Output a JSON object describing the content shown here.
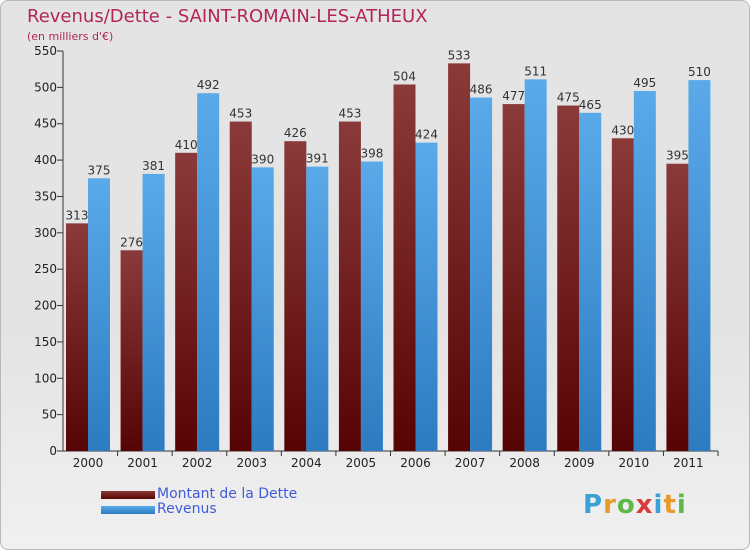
{
  "title": "Revenus/Dette - SAINT-ROMAIN-LES-ATHEUX",
  "subtitle": "(en milliers d'€)",
  "colors": {
    "dette_top": "#8b3a3a",
    "dette_bottom": "#560303",
    "revenus_top": "#5aaaea",
    "revenus_bottom": "#2d7bc0",
    "title": "#b2245a",
    "legend_text": "#3f5bd9"
  },
  "chart_data": {
    "type": "bar",
    "title": "Revenus/Dette - SAINT-ROMAIN-LES-ATHEUX",
    "ylabel": "(en milliers d'€)",
    "xlabel": "",
    "ylim": [
      0,
      550
    ],
    "yticks": [
      0,
      50,
      100,
      150,
      200,
      250,
      300,
      350,
      400,
      450,
      500,
      550
    ],
    "grid": false,
    "legend_position": "bottom-left",
    "categories": [
      "2000",
      "2001",
      "2002",
      "2003",
      "2004",
      "2005",
      "2006",
      "2007",
      "2008",
      "2009",
      "2010",
      "2011"
    ],
    "series": [
      {
        "name": "Montant de la Dette",
        "values": [
          313,
          276,
          410,
          453,
          426,
          453,
          504,
          533,
          477,
          475,
          430,
          395
        ]
      },
      {
        "name": "Revenus",
        "values": [
          375,
          381,
          492,
          390,
          391,
          398,
          424,
          486,
          511,
          465,
          495,
          510
        ]
      }
    ]
  },
  "legend": [
    {
      "label": "Montant de la Dette"
    },
    {
      "label": "Revenus"
    }
  ],
  "logo": {
    "letters": [
      "P",
      "r",
      "o",
      "x",
      "i",
      "t",
      "i"
    ],
    "letter_colors": [
      "#3aa0d6",
      "#e89a2a",
      "#5fb84a",
      "#d93a3a",
      "#3aa0d6",
      "#e89a2a",
      "#5fb84a"
    ]
  }
}
